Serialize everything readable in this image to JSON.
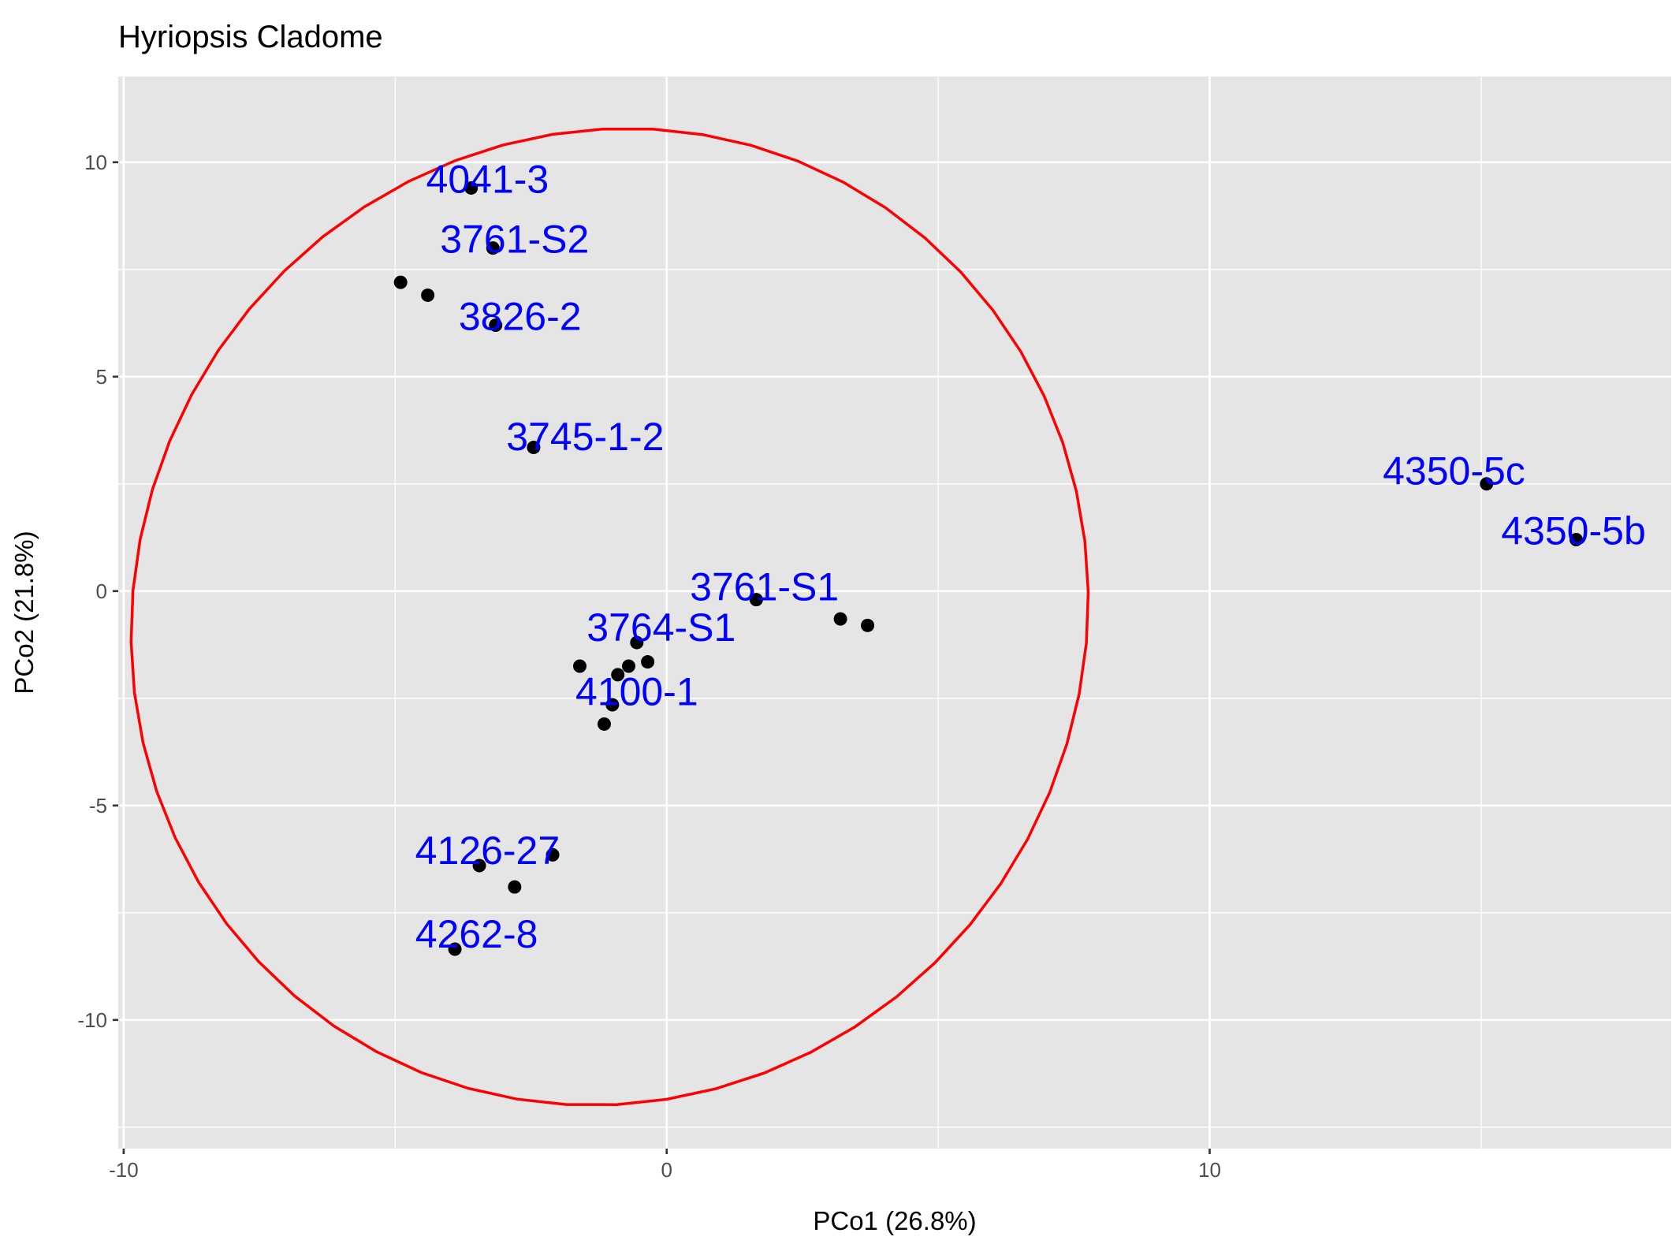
{
  "chart_data": {
    "type": "scatter",
    "title": "Hyriopsis Cladome",
    "xlabel": "PCo1 (26.8%)",
    "ylabel": "PCo2 (21.8%)",
    "xlim": [
      -10.1,
      18.5
    ],
    "ylim": [
      -13.0,
      12.0
    ],
    "x_ticks": [
      -10,
      0,
      10
    ],
    "x_tick_labels": [
      "-10",
      "0",
      "10"
    ],
    "y_ticks": [
      -10,
      -5,
      0,
      5,
      10
    ],
    "y_tick_labels": [
      "-10",
      "-5",
      "0",
      "5",
      "10"
    ],
    "x_minor_ticks": [
      -5,
      5,
      15
    ],
    "y_minor_ticks": [
      -12.5,
      -7.5,
      -2.5,
      2.5,
      7.5
    ],
    "grid": true,
    "points": [
      {
        "x": -3.6,
        "y": 9.4
      },
      {
        "x": -3.2,
        "y": 8.0
      },
      {
        "x": -4.9,
        "y": 7.2
      },
      {
        "x": -4.4,
        "y": 6.9
      },
      {
        "x": -3.15,
        "y": 6.2
      },
      {
        "x": -2.45,
        "y": 3.35
      },
      {
        "x": 1.65,
        "y": -0.2
      },
      {
        "x": 3.2,
        "y": -0.65
      },
      {
        "x": 3.7,
        "y": -0.8
      },
      {
        "x": -0.55,
        "y": -1.2
      },
      {
        "x": -1.6,
        "y": -1.75
      },
      {
        "x": -0.7,
        "y": -1.75
      },
      {
        "x": -0.35,
        "y": -1.65
      },
      {
        "x": -0.9,
        "y": -1.95
      },
      {
        "x": -1.0,
        "y": -2.65
      },
      {
        "x": -1.15,
        "y": -3.1
      },
      {
        "x": -2.1,
        "y": -6.15
      },
      {
        "x": -3.45,
        "y": -6.4
      },
      {
        "x": -2.8,
        "y": -6.9
      },
      {
        "x": -3.9,
        "y": -8.35
      },
      {
        "x": 15.1,
        "y": 2.5
      },
      {
        "x": 16.75,
        "y": 1.2
      }
    ],
    "point_labels": [
      {
        "text": "4041-3",
        "x": -3.3,
        "y": 9.6
      },
      {
        "text": "3761-S2",
        "x": -2.8,
        "y": 8.2
      },
      {
        "text": "3826-2",
        "x": -2.7,
        "y": 6.4
      },
      {
        "text": "3745-1-2",
        "x": -1.5,
        "y": 3.6
      },
      {
        "text": "4350-5c",
        "x": 14.5,
        "y": 2.8
      },
      {
        "text": "4350-5b",
        "x": 16.7,
        "y": 1.4
      },
      {
        "text": "3761-S1",
        "x": 1.8,
        "y": 0.1
      },
      {
        "text": "3764-S1",
        "x": -0.1,
        "y": -0.85
      },
      {
        "text": "4100-1",
        "x": -0.55,
        "y": -2.35
      },
      {
        "text": "4126-27",
        "x": -3.3,
        "y": -6.05
      },
      {
        "text": "4262-8",
        "x": -3.5,
        "y": -8.0
      }
    ],
    "ellipse": {
      "center": [
        -1.05,
        -0.6
      ],
      "semi_axes": [
        8.8,
        11.4
      ],
      "rotation_deg": -4,
      "color": "#ff0000"
    },
    "colors": {
      "panel": "#e5e5e5",
      "grid": "#ffffff",
      "points": "#000000",
      "labels": "#0000ff",
      "ellipse": "#ff0000"
    }
  }
}
